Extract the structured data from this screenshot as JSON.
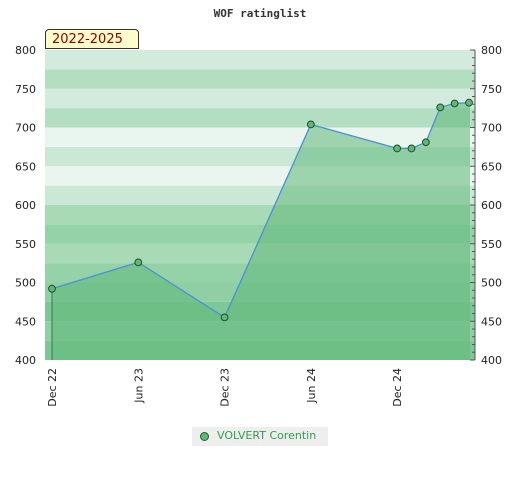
{
  "chart_data": {
    "type": "area",
    "title": "WOF ratinglist",
    "period_badge": "2022-2025",
    "ylim": [
      400,
      800
    ],
    "yticks": [
      400,
      450,
      500,
      550,
      600,
      650,
      700,
      750,
      800
    ],
    "xticks": [
      "Dec 22",
      "Jun 23",
      "Dec 23",
      "Jun 24",
      "Dec 24"
    ],
    "legend": "bottom-center",
    "grid": true,
    "series": [
      {
        "name": "VOLVERT Corentin",
        "color": "#5fb878",
        "points": [
          {
            "x": "2022-12",
            "y": 492
          },
          {
            "x": "2023-06",
            "y": 526
          },
          {
            "x": "2023-12",
            "y": 455
          },
          {
            "x": "2024-06",
            "y": 704
          },
          {
            "x": "2024-12",
            "y": 673
          },
          {
            "x": "2025-01",
            "y": 673
          },
          {
            "x": "2025-02",
            "y": 681
          },
          {
            "x": "2025-03",
            "y": 726
          },
          {
            "x": "2025-04",
            "y": 731
          },
          {
            "x": "2025-05",
            "y": 732
          }
        ]
      }
    ]
  },
  "colors": {
    "line": "#4a90d9",
    "fill": "#5fb878",
    "band_dark": "#b3dfc0",
    "band_light": "#e8f5ec"
  }
}
